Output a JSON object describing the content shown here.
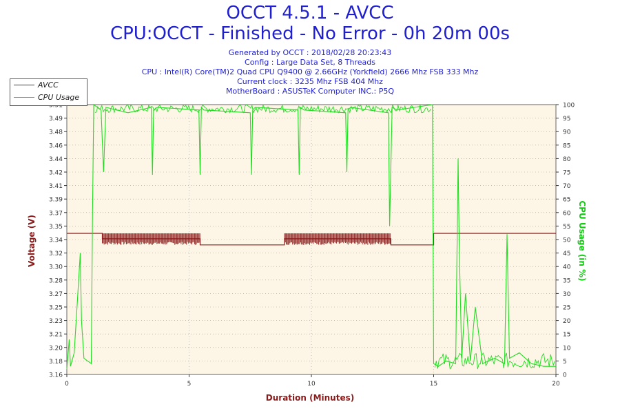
{
  "header": {
    "title": "OCCT 4.5.1 - AVCC",
    "subtitle": "CPU:OCCT - Finished - No Error - 0h 20m 00s",
    "info_lines": [
      "Generated by OCCT : 2018/02/28 20:23:43",
      "Config : Large Data Set, 8 Threads",
      "CPU : Intel(R) Core(TM)2 Quad CPU Q9400 @ 2.66GHz (Yorkfield) 2666 Mhz FSB 333 Mhz",
      "Current clock : 3235 Mhz FSB 404 Mhz",
      "MotherBoard : ASUSTeK Computer INC.: P5Q"
    ]
  },
  "colors": {
    "avcc": "#8b1a1a",
    "cpu_usage": "#22dd22",
    "plot_bg": "#fdf5e6",
    "grid": "#999999",
    "text_blue": "#1f1fd0"
  },
  "chart_data": {
    "type": "line",
    "title": "OCCT 4.5.1 - AVCC",
    "subtitle": "CPU:OCCT - Finished - No Error - 0h 20m 00s",
    "xlabel": "Duration (Minutes)",
    "ylabel": "Voltage (V)",
    "ylabel_right": "CPU Usage (in %)",
    "xlim": [
      0,
      20
    ],
    "x_ticks": [
      "0",
      "5",
      "10",
      "15",
      "20"
    ],
    "y_left_ticks": [
      "3.16",
      "3.18",
      "3.20",
      "3.21",
      "3.23",
      "3.25",
      "3.27",
      "3.28",
      "3.30",
      "3.32",
      "3.34",
      "3.35",
      "3.37",
      "3.39",
      "3.41",
      "3.42",
      "3.44",
      "3.46",
      "3.48",
      "3.49",
      "3.51"
    ],
    "ylim_left": [
      3.16,
      3.51
    ],
    "y_right_ticks": [
      "0",
      "5",
      "10",
      "15",
      "20",
      "25",
      "30",
      "35",
      "40",
      "45",
      "50",
      "55",
      "60",
      "65",
      "70",
      "75",
      "80",
      "85",
      "90",
      "95",
      "100"
    ],
    "ylim_right": [
      0,
      100
    ],
    "grid": true,
    "legend_position": "top-left",
    "series": [
      {
        "name": "AVCC",
        "axis": "left",
        "x": [
          0,
          1.45,
          1.45,
          5.45,
          5.45,
          8.9,
          8.9,
          13.25,
          13.25,
          15.0,
          15.0,
          20
        ],
        "y": [
          3.343,
          3.343,
          3.336,
          3.336,
          3.328,
          3.328,
          3.336,
          3.336,
          3.328,
          3.328,
          3.343,
          3.343
        ],
        "noise_segments": [
          [
            1.45,
            5.45
          ],
          [
            8.9,
            13.25
          ]
        ]
      },
      {
        "name": "CPU Usage",
        "axis": "right",
        "x": [
          0,
          0.1,
          0.15,
          0.3,
          0.45,
          0.55,
          0.6,
          0.7,
          0.85,
          1.0,
          1.05,
          1.1,
          1.4,
          1.5,
          1.6,
          2.5,
          3.45,
          3.5,
          3.55,
          3.7,
          5.4,
          5.45,
          5.5,
          5.6,
          7.5,
          7.55,
          7.6,
          7.7,
          9.45,
          9.5,
          9.55,
          9.7,
          11.4,
          11.45,
          11.5,
          11.6,
          13.15,
          13.2,
          13.3,
          13.5,
          14.95,
          15.0,
          15.2,
          15.5,
          15.9,
          16.0,
          16.05,
          16.15,
          16.3,
          16.5,
          16.7,
          17.0,
          17.5,
          17.9,
          18.0,
          18.1,
          18.5,
          19.0,
          19.5,
          20
        ],
        "y": [
          2,
          13,
          3,
          8,
          30,
          45,
          20,
          6,
          5,
          4,
          60,
          100,
          98,
          75,
          99,
          97,
          99,
          74,
          98,
          99,
          98,
          74,
          99,
          98,
          97,
          74,
          98,
          99,
          98,
          74,
          99,
          98,
          97,
          75,
          98,
          99,
          97,
          55,
          99,
          98,
          100,
          4,
          3,
          5,
          4,
          80,
          45,
          6,
          30,
          5,
          25,
          4,
          6,
          4,
          52,
          6,
          8,
          4,
          3,
          3
        ]
      }
    ]
  }
}
